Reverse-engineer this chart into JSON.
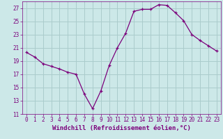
{
  "x": [
    0,
    1,
    2,
    3,
    4,
    5,
    6,
    7,
    8,
    9,
    10,
    11,
    12,
    13,
    14,
    15,
    16,
    17,
    18,
    19,
    20,
    21,
    22,
    23
  ],
  "y": [
    20.3,
    19.6,
    18.6,
    18.2,
    17.8,
    17.3,
    17.0,
    14.0,
    11.8,
    14.5,
    18.3,
    21.0,
    23.2,
    26.5,
    26.8,
    26.8,
    27.5,
    27.4,
    26.3,
    25.1,
    23.0,
    22.1,
    21.3,
    20.5
  ],
  "line_color": "#7b007b",
  "marker_color": "#7b007b",
  "bg_color": "#cce8e8",
  "grid_color": "#aacccc",
  "axis_color": "#7b007b",
  "label_color": "#7b007b",
  "xlabel": "Windchill (Refroidissement éolien,°C)",
  "ylim": [
    11,
    28
  ],
  "yticks": [
    11,
    13,
    15,
    17,
    19,
    21,
    23,
    25,
    27
  ],
  "xlim": [
    -0.5,
    23.5
  ],
  "xticks": [
    0,
    1,
    2,
    3,
    4,
    5,
    6,
    7,
    8,
    9,
    10,
    11,
    12,
    13,
    14,
    15,
    16,
    17,
    18,
    19,
    20,
    21,
    22,
    23
  ],
  "tick_fontsize": 5.5,
  "xlabel_fontsize": 6.5
}
